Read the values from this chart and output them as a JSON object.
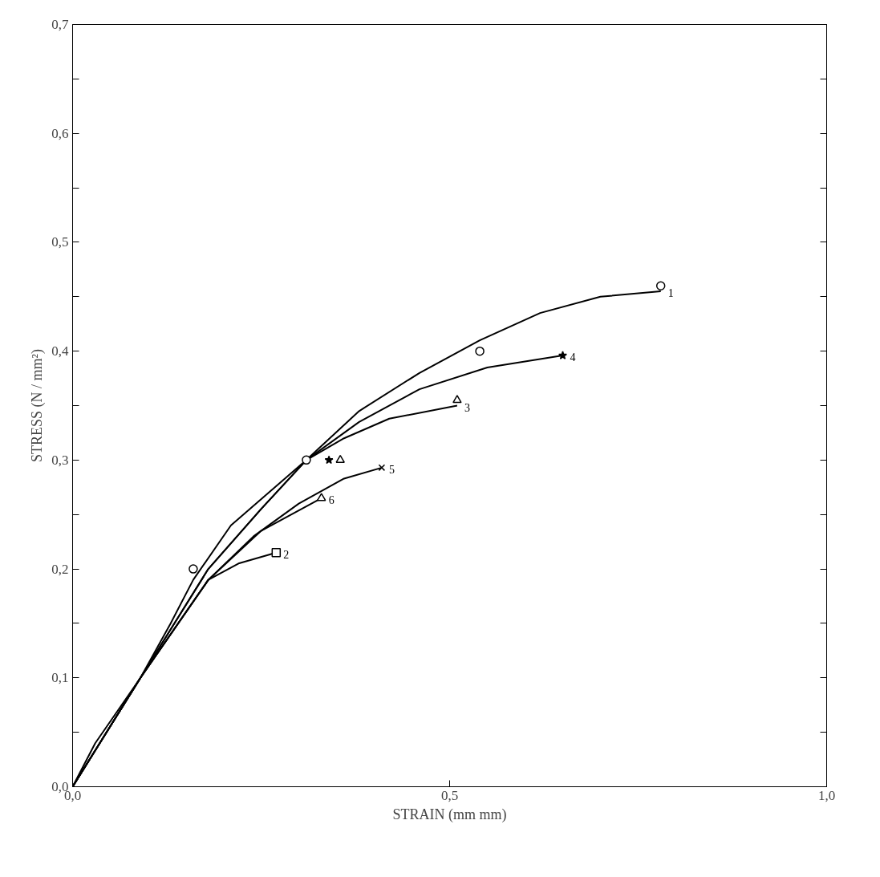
{
  "chart_data": {
    "type": "line",
    "xlabel": "STRAIN (mm mm)",
    "ylabel": "STRESS (N / mm²)",
    "xlim": [
      0,
      1.0
    ],
    "ylim": [
      0,
      0.7
    ],
    "xticks": [
      {
        "value": 0,
        "label": "0,0"
      },
      {
        "value": 0.5,
        "label": "0,5"
      },
      {
        "value": 1.0,
        "label": "1,0"
      }
    ],
    "yticks": [
      {
        "value": 0,
        "label": "0,0"
      },
      {
        "value": 0.05,
        "label": null
      },
      {
        "value": 0.1,
        "label": "0,1"
      },
      {
        "value": 0.15,
        "label": null
      },
      {
        "value": 0.2,
        "label": "0,2"
      },
      {
        "value": 0.25,
        "label": null
      },
      {
        "value": 0.3,
        "label": "0,3"
      },
      {
        "value": 0.35,
        "label": null
      },
      {
        "value": 0.4,
        "label": "0,4"
      },
      {
        "value": 0.45,
        "label": null
      },
      {
        "value": 0.5,
        "label": "0,5"
      },
      {
        "value": 0.55,
        "label": null
      },
      {
        "value": 0.6,
        "label": "0,6"
      },
      {
        "value": 0.65,
        "label": null
      },
      {
        "value": 0.7,
        "label": "0,7"
      }
    ],
    "grid": false,
    "line_style": "solid",
    "series": [
      {
        "name": "1",
        "color": "#000000",
        "x": [
          0,
          0.03,
          0.06,
          0.09,
          0.13,
          0.16,
          0.21,
          0.26,
          0.31,
          0.38,
          0.46,
          0.54,
          0.62,
          0.7,
          0.78
        ],
        "values": [
          0,
          0.04,
          0.07,
          0.1,
          0.15,
          0.19,
          0.24,
          0.27,
          0.3,
          0.345,
          0.38,
          0.41,
          0.435,
          0.45,
          0.455
        ]
      },
      {
        "name": "4",
        "color": "#000000",
        "x": [
          0,
          0.09,
          0.18,
          0.25,
          0.31,
          0.38,
          0.46,
          0.55,
          0.65
        ],
        "values": [
          0,
          0.1,
          0.2,
          0.255,
          0.3,
          0.335,
          0.365,
          0.385,
          0.396
        ]
      },
      {
        "name": "3",
        "color": "#000000",
        "x": [
          0,
          0.09,
          0.18,
          0.25,
          0.31,
          0.36,
          0.42,
          0.51
        ],
        "values": [
          0,
          0.1,
          0.2,
          0.255,
          0.3,
          0.32,
          0.338,
          0.35
        ]
      },
      {
        "name": "5",
        "color": "#000000",
        "x": [
          0,
          0.09,
          0.18,
          0.24,
          0.3,
          0.36,
          0.41
        ],
        "values": [
          0,
          0.1,
          0.19,
          0.23,
          0.26,
          0.283,
          0.293
        ]
      },
      {
        "name": "6",
        "color": "#000000",
        "x": [
          0,
          0.09,
          0.18,
          0.25,
          0.33
        ],
        "values": [
          0,
          0.1,
          0.19,
          0.235,
          0.265
        ]
      },
      {
        "name": "2",
        "color": "#000000",
        "x": [
          0,
          0.09,
          0.18,
          0.22,
          0.27
        ],
        "values": [
          0,
          0.1,
          0.19,
          0.205,
          0.215
        ]
      },
      {
        "type": "scatter",
        "color": "#000000",
        "marker": "circle",
        "x": [
          0.16,
          0.31,
          0.54,
          0.78
        ],
        "values": [
          0.2,
          0.3,
          0.4,
          0.46
        ]
      },
      {
        "type": "scatter",
        "color": "#000000",
        "marker": "star",
        "x": [
          0.34,
          0.65
        ],
        "values": [
          0.3,
          0.396
        ]
      },
      {
        "type": "scatter",
        "color": "#000000",
        "marker": "triangle",
        "x": [
          0.355,
          0.51,
          0.33
        ],
        "values": [
          0.3,
          0.355,
          0.265
        ]
      },
      {
        "type": "scatter",
        "color": "#000000",
        "marker": "cross",
        "x": [
          0.41
        ],
        "values": [
          0.293
        ]
      },
      {
        "type": "scatter",
        "color": "#000000",
        "marker": "square",
        "x": [
          0.27
        ],
        "values": [
          0.215
        ]
      }
    ]
  }
}
